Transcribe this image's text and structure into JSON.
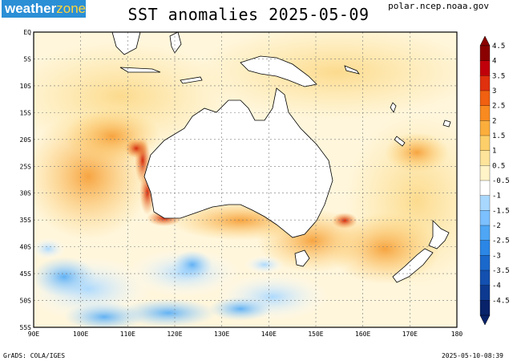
{
  "brand": {
    "name_part1": "weather",
    "name_part2": "zone"
  },
  "title": "SST anomalies 2025-05-09",
  "source": "polar.ncep.noaa.gov",
  "footer": {
    "left": "GrADS: COLA/IGES",
    "right": "2025-05-10-08:39"
  },
  "map": {
    "lon_range": [
      90,
      180
    ],
    "lat_range": [
      -55,
      0
    ],
    "lat_labels": [
      "EQ",
      "5S",
      "10S",
      "15S",
      "20S",
      "25S",
      "30S",
      "35S",
      "40S",
      "45S",
      "50S",
      "55S"
    ],
    "lon_labels": [
      "90E",
      "100E",
      "110E",
      "120E",
      "130E",
      "140E",
      "150E",
      "160E",
      "170E",
      "180"
    ]
  },
  "colorbar": {
    "levels": [
      "4.5",
      "4",
      "3.5",
      "3",
      "2.5",
      "2",
      "1.5",
      "1",
      "0.5",
      "-0.5",
      "-1",
      "-1.5",
      "-2",
      "-2.5",
      "-3",
      "-3.5",
      "-4",
      "-4.5"
    ],
    "colors": [
      "#8b0000",
      "#c0000a",
      "#e0300e",
      "#f06010",
      "#f88a20",
      "#fcae3c",
      "#fdcf6a",
      "#fde49a",
      "#fff3c8",
      "#ffffff",
      "#a9d8ff",
      "#7cc0ff",
      "#4ea6f5",
      "#2b86e6",
      "#1b68cc",
      "#1350b0",
      "#0d3a90",
      "#08236a"
    ]
  }
}
